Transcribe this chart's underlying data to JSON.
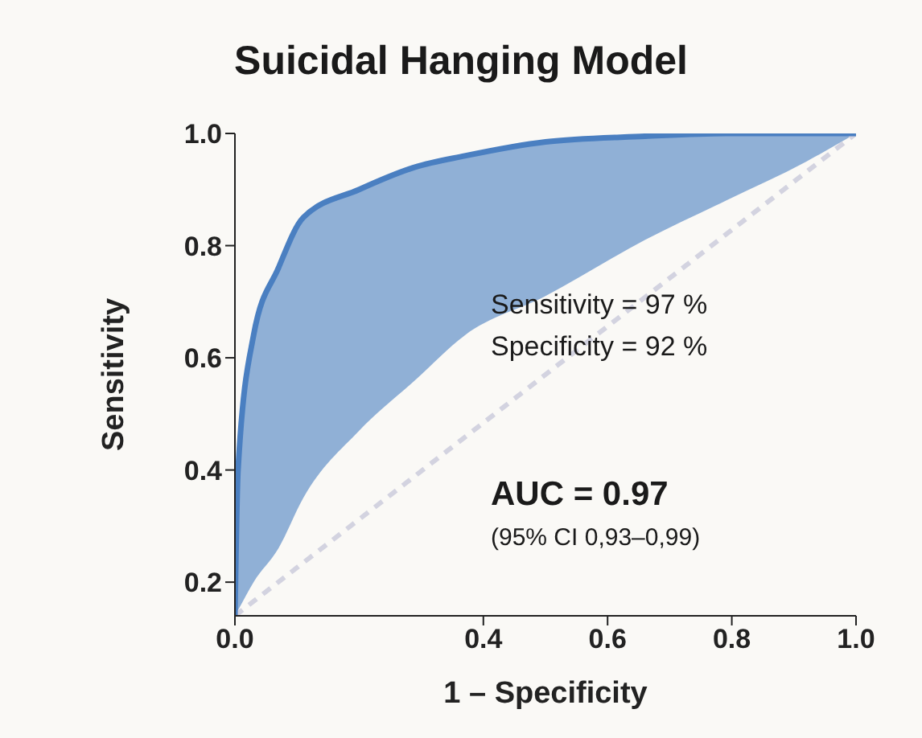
{
  "chart_data": {
    "type": "line",
    "title": "Suicidal Hanging Model",
    "xlabel": "1 – Specificity",
    "ylabel": "Sensitivity",
    "xlim": [
      0,
      1
    ],
    "xticks": [
      {
        "value": 0,
        "label": "0.0"
      },
      0.4,
      0.6,
      0.8,
      {
        "value": 1,
        "label": "1.0"
      }
    ],
    "ylim": [
      0.14,
      1.0
    ],
    "yticks": [
      0.2,
      0.4,
      0.6,
      0.8,
      {
        "value": 1,
        "label": "1.0"
      }
    ],
    "series": [
      {
        "color": "#4a7fc1",
        "x": [
          0,
          0.005,
          0.03,
          0.07,
          0.11,
          0.2,
          0.29,
          0.37,
          0.5,
          0.66,
          0.79,
          0.92,
          1.0
        ],
        "values": [
          0.14,
          0.4,
          0.64,
          0.76,
          0.85,
          0.9,
          0.94,
          0.96,
          0.985,
          0.995,
          1.0,
          1.0,
          1.0
        ],
        "lower": [
          0.14,
          0.15,
          0.2,
          0.26,
          0.35,
          0.47,
          0.56,
          0.64,
          0.71,
          0.81,
          0.88,
          0.95,
          1.0
        ],
        "upper": [
          0.14,
          0.4,
          0.64,
          0.76,
          0.85,
          0.9,
          0.94,
          0.96,
          0.985,
          0.995,
          1.0,
          1.0,
          1.0
        ]
      },
      {
        "color": "#d3d3e0",
        "line_style": "dashed",
        "x": [
          0,
          1
        ],
        "values": [
          0.14,
          1.0
        ]
      }
    ],
    "annotations": [
      "Sensitivity = 97 %",
      "Specificity = 92 %",
      "AUC = 0.97",
      "(95% CI 0,93–0,99)"
    ]
  }
}
